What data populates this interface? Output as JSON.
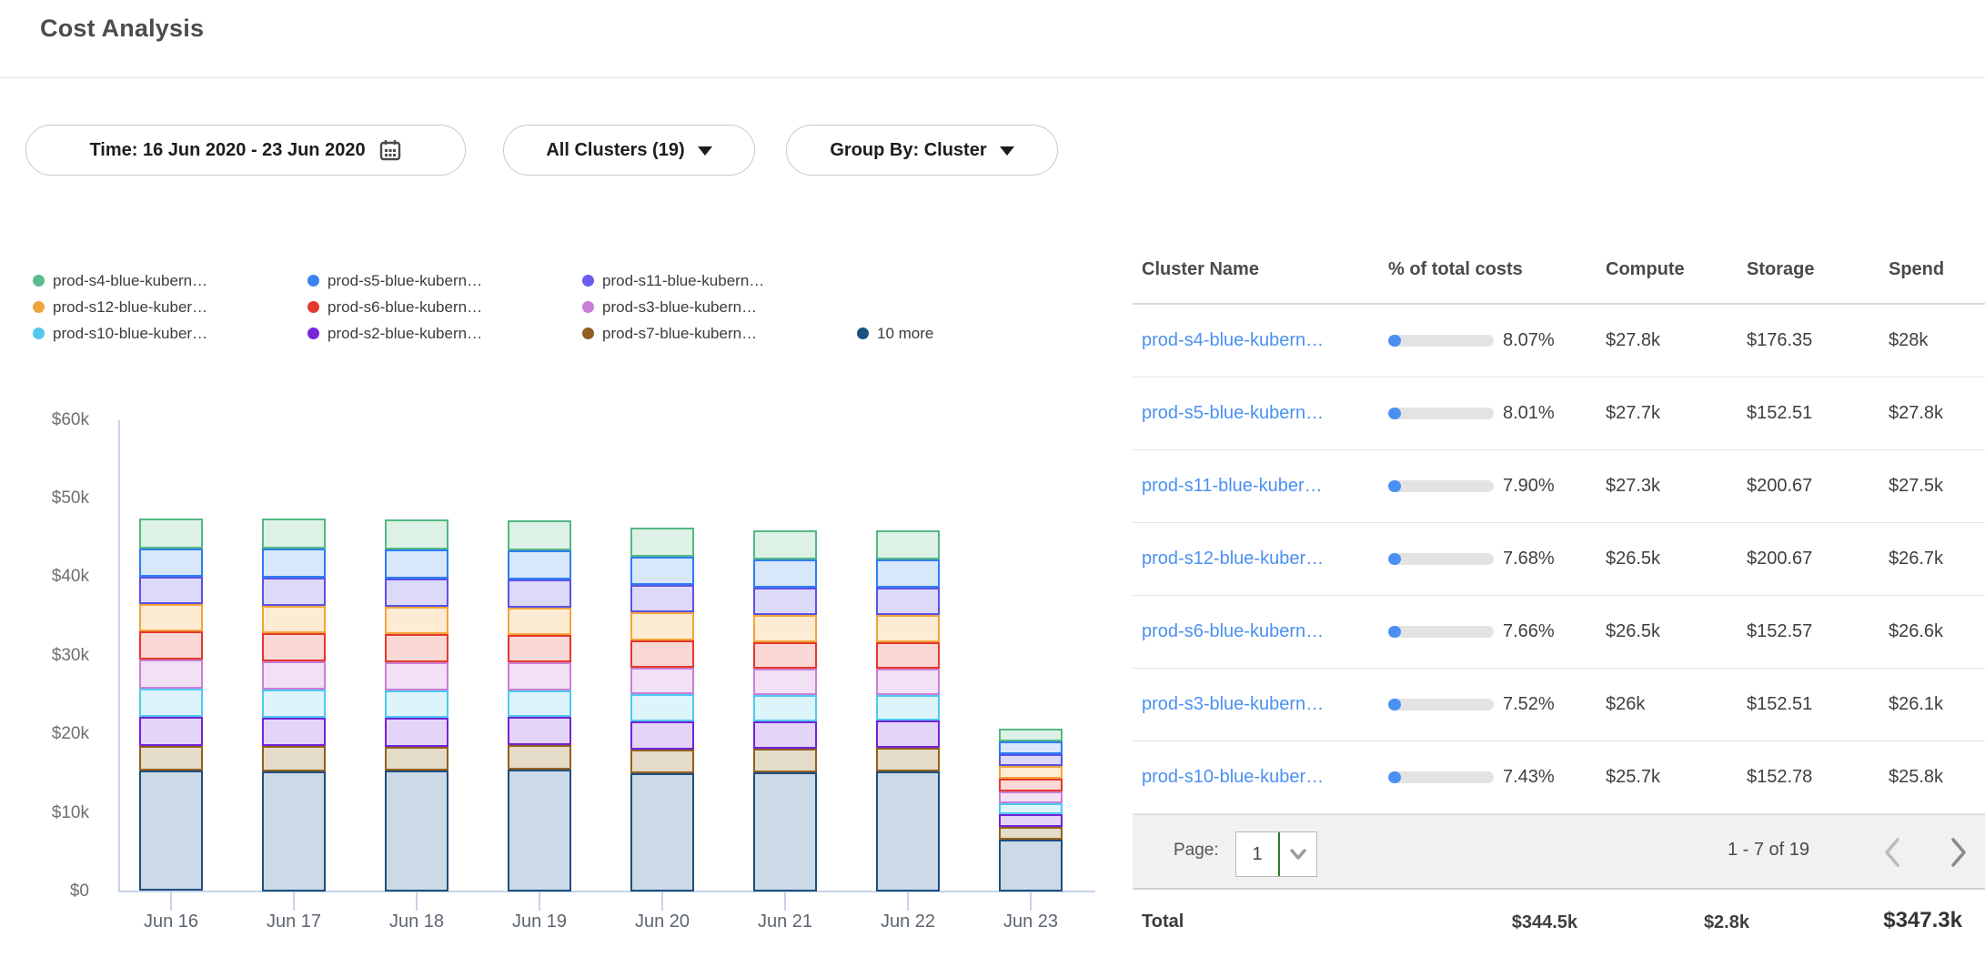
{
  "header": {
    "title": "Cost Analysis"
  },
  "filters": {
    "time": {
      "label": "Time: 16 Jun 2020 - 23 Jun 2020",
      "icon": "calendar-icon"
    },
    "clusters": {
      "label": "All Clusters (19)",
      "icon": "caret-down-icon"
    },
    "group_by": {
      "label": "Group By: Cluster",
      "icon": "caret-down-icon"
    }
  },
  "legend": {
    "rows": [
      [
        {
          "label": "prod-s4-blue-kubern…",
          "color": "#5cbb8d"
        },
        {
          "label": "prod-s5-blue-kubern…",
          "color": "#3b82f2"
        },
        {
          "label": "prod-s11-blue-kubern…",
          "color": "#6a5cf0"
        }
      ],
      [
        {
          "label": "prod-s12-blue-kuber…",
          "color": "#f0a43c"
        },
        {
          "label": "prod-s6-blue-kubern…",
          "color": "#e63a2e"
        },
        {
          "label": "prod-s3-blue-kubern…",
          "color": "#c87fd9"
        }
      ],
      [
        {
          "label": "prod-s10-blue-kuber…",
          "color": "#52c7ee"
        },
        {
          "label": "prod-s2-blue-kubern…",
          "color": "#7a25da"
        },
        {
          "label": "prod-s7-blue-kubern…",
          "color": "#8f5e20"
        },
        {
          "label": "10 more",
          "color": "#1d5080"
        }
      ]
    ]
  },
  "chart_data": {
    "type": "stacked-bar",
    "title": "Daily cluster costs, 16-23 Jun 2020 (USD thousands)",
    "categories": [
      "Jun 16",
      "Jun 17",
      "Jun 18",
      "Jun 19",
      "Jun 20",
      "Jun 21",
      "Jun 22",
      "Jun 23"
    ],
    "stack_order": "first series is top of stack",
    "series": [
      {
        "name": "prod-s4-blue-kubern…",
        "stroke": "#53b884",
        "fill": "#def1e6",
        "values": [
          3.8,
          3.8,
          3.8,
          3.8,
          3.7,
          3.7,
          3.7,
          1.6
        ]
      },
      {
        "name": "prod-s5-blue-kubern…",
        "stroke": "#2d7ff0",
        "fill": "#d9e7fb",
        "values": [
          3.6,
          3.7,
          3.7,
          3.7,
          3.6,
          3.6,
          3.6,
          1.6
        ]
      },
      {
        "name": "prod-s11-blue-kubern…",
        "stroke": "#5a52e6",
        "fill": "#dcdaf8",
        "values": [
          3.5,
          3.6,
          3.6,
          3.6,
          3.5,
          3.5,
          3.5,
          1.5
        ]
      },
      {
        "name": "prod-s12-blue-kuber…",
        "stroke": "#f3a43a",
        "fill": "#fdecd3",
        "values": [
          3.5,
          3.5,
          3.5,
          3.5,
          3.5,
          3.4,
          3.4,
          1.7
        ]
      },
      {
        "name": "prod-s6-blue-kubern…",
        "stroke": "#e6372b",
        "fill": "#fad8d5",
        "values": [
          3.6,
          3.6,
          3.6,
          3.5,
          3.5,
          3.4,
          3.4,
          1.6
        ]
      },
      {
        "name": "prod-s3-blue-kubern…",
        "stroke": "#c87fd6",
        "fill": "#f2e1f5",
        "values": [
          3.7,
          3.6,
          3.6,
          3.5,
          3.4,
          3.4,
          3.3,
          1.5
        ]
      },
      {
        "name": "prod-s10-blue-kuber…",
        "stroke": "#4ec9ef",
        "fill": "#def4fb",
        "values": [
          3.5,
          3.5,
          3.4,
          3.4,
          3.4,
          3.3,
          3.3,
          1.4
        ]
      },
      {
        "name": "prod-s2-blue-kubern…",
        "stroke": "#7124d8",
        "fill": "#e4d5f8",
        "values": [
          3.7,
          3.7,
          3.7,
          3.6,
          3.6,
          3.5,
          3.5,
          1.6
        ]
      },
      {
        "name": "prod-s7-blue-kubern…",
        "stroke": "#92601e",
        "fill": "#e4dcc9",
        "values": [
          3.2,
          3.2,
          3.1,
          3.1,
          3.1,
          3.0,
          3.0,
          1.6
        ]
      },
      {
        "name": "10 more",
        "stroke": "#1d4e7d",
        "fill": "#ccdae8",
        "values": [
          15.3,
          15.3,
          15.3,
          15.5,
          15.0,
          15.1,
          15.3,
          6.6
        ]
      }
    ],
    "yticks": [
      {
        "label": "$60k",
        "value": 60
      },
      {
        "label": "$50k",
        "value": 50
      },
      {
        "label": "$40k",
        "value": 40
      },
      {
        "label": "$30k",
        "value": 30
      },
      {
        "label": "$20k",
        "value": 20
      },
      {
        "label": "$10k",
        "value": 10
      },
      {
        "label": "$0",
        "value": 0
      }
    ],
    "ylim": [
      0,
      60
    ],
    "grid": false,
    "legend_position": "top"
  },
  "table": {
    "columns": [
      "Cluster Name",
      "% of total costs",
      "Compute",
      "Storage",
      "Spend"
    ],
    "rows": [
      {
        "name": "prod-s4-blue-kubern…",
        "pct": "8.07%",
        "pct_value": 8.07,
        "compute": "$27.8k",
        "storage": "$176.35",
        "spend": "$28k"
      },
      {
        "name": "prod-s5-blue-kubern…",
        "pct": "8.01%",
        "pct_value": 8.01,
        "compute": "$27.7k",
        "storage": "$152.51",
        "spend": "$27.8k"
      },
      {
        "name": "prod-s11-blue-kuber…",
        "pct": "7.90%",
        "pct_value": 7.9,
        "compute": "$27.3k",
        "storage": "$200.67",
        "spend": "$27.5k"
      },
      {
        "name": "prod-s12-blue-kuber…",
        "pct": "7.68%",
        "pct_value": 7.68,
        "compute": "$26.5k",
        "storage": "$200.67",
        "spend": "$26.7k"
      },
      {
        "name": "prod-s6-blue-kubern…",
        "pct": "7.66%",
        "pct_value": 7.66,
        "compute": "$26.5k",
        "storage": "$152.57",
        "spend": "$26.6k"
      },
      {
        "name": "prod-s3-blue-kubern…",
        "pct": "7.52%",
        "pct_value": 7.52,
        "compute": "$26k",
        "storage": "$152.51",
        "spend": "$26.1k"
      },
      {
        "name": "prod-s10-blue-kuber…",
        "pct": "7.43%",
        "pct_value": 7.43,
        "compute": "$25.7k",
        "storage": "$152.78",
        "spend": "$25.8k"
      }
    ],
    "pagination": {
      "page_label": "Page:",
      "page": "1",
      "range": "1 - 7 of 19"
    },
    "total": {
      "label": "Total",
      "compute": "$344.5k",
      "storage": "$2.8k",
      "spend": "$347.3k"
    }
  },
  "colors": {
    "link": "#4a90f2",
    "progress_fill": "#4a90f2",
    "progress_track": "#e3e3e3",
    "axis": "#c8d2e8",
    "select_accent_green": "#2e7d32"
  }
}
